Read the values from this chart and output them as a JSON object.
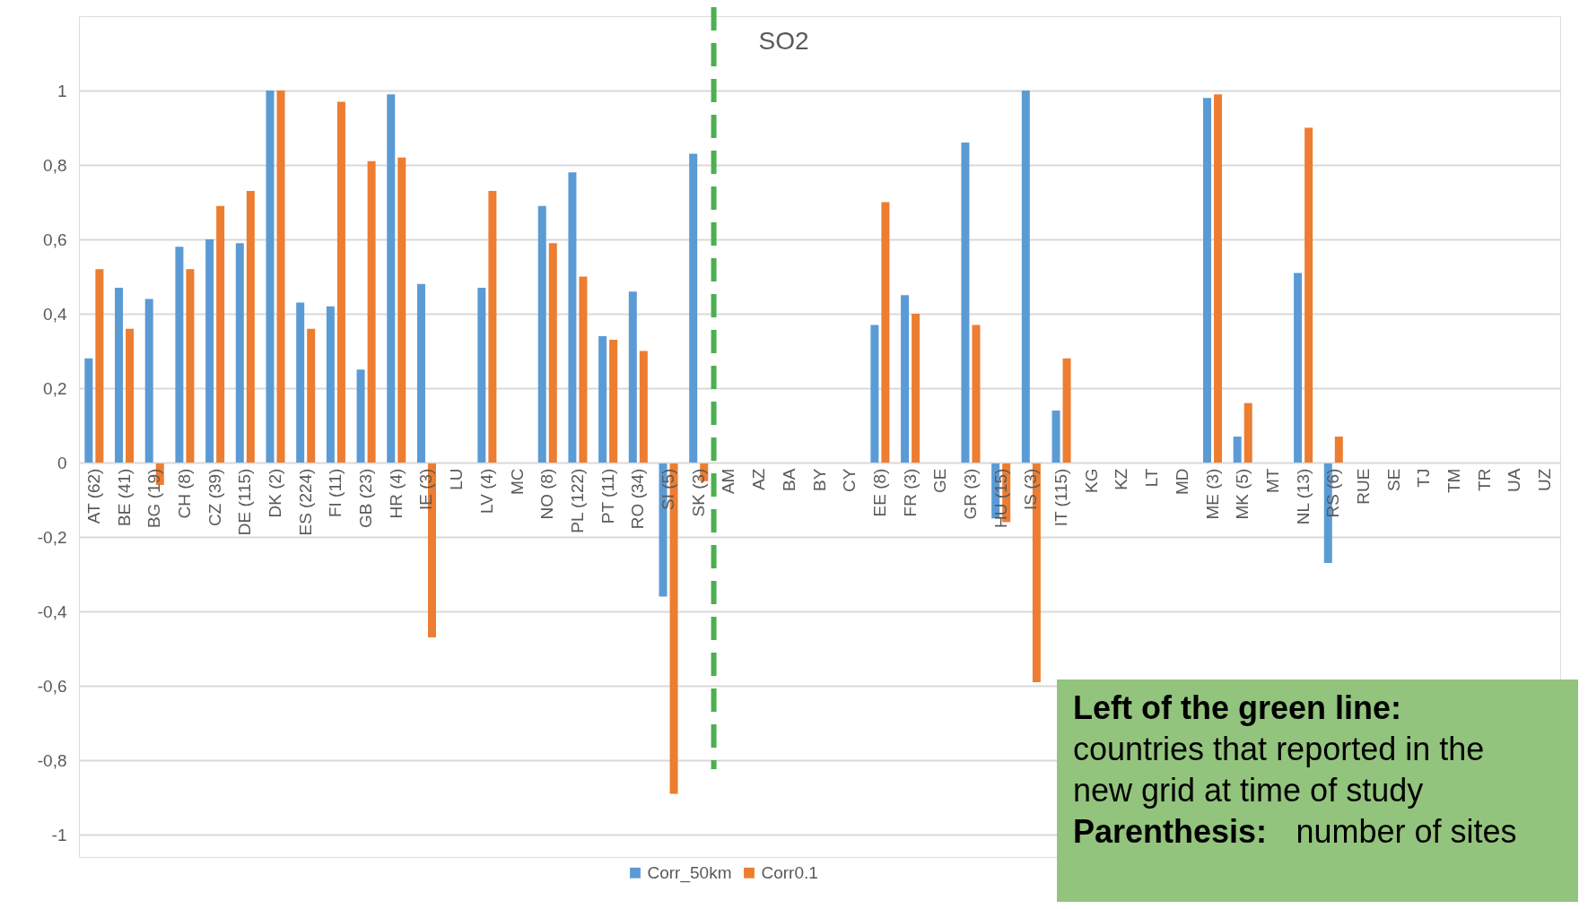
{
  "chart_data": {
    "type": "bar",
    "title": "SO2",
    "categories": [
      "AT (62)",
      "BE (41)",
      "BG (19)",
      "CH (8)",
      "CZ (39)",
      "DE (115)",
      "DK (2)",
      "ES (224)",
      "FI (11)",
      "GB (23)",
      "HR (4)",
      "IE (3)",
      "LU",
      "LV (4)",
      "MC",
      "NO (8)",
      "PL (122)",
      "PT (11)",
      "RO (34)",
      "SI (5)",
      "SK (3)",
      "AM",
      "AZ",
      "BA",
      "BY",
      "CY",
      "EE (8)",
      "FR (3)",
      "GE",
      "GR (3)",
      "HU (15)",
      "IS (3)",
      "IT (115)",
      "KG",
      "KZ",
      "LT",
      "MD",
      "ME (3)",
      "MK (5)",
      "MT",
      "NL (13)",
      "RS (6)",
      "RUE",
      "SE",
      "TJ",
      "TM",
      "TR",
      "UA",
      "UZ"
    ],
    "series": [
      {
        "name": "Corr_50km",
        "color": "#5b9bd5",
        "values": [
          0.28,
          0.47,
          0.44,
          0.58,
          0.6,
          0.59,
          1,
          0.43,
          0.42,
          0.25,
          0.99,
          0.48,
          null,
          0.47,
          null,
          0.69,
          0.78,
          0.34,
          0.46,
          -0.36,
          0.83,
          null,
          null,
          null,
          null,
          null,
          0.37,
          0.45,
          null,
          0.86,
          -0.15,
          1,
          0.14,
          null,
          null,
          null,
          null,
          0.98,
          0.07,
          null,
          0.51,
          -0.27,
          null,
          null,
          null,
          null,
          null,
          null,
          null
        ]
      },
      {
        "name": "Corr0.1",
        "color": "#ed7d31",
        "values": [
          0.52,
          0.36,
          -0.06,
          0.52,
          0.69,
          0.73,
          1,
          0.36,
          0.97,
          0.81,
          0.82,
          -0.47,
          null,
          0.73,
          null,
          0.59,
          0.5,
          0.33,
          0.3,
          -0.89,
          -0.05,
          null,
          null,
          null,
          null,
          null,
          0.7,
          0.4,
          null,
          0.37,
          -0.16,
          -0.59,
          0.28,
          null,
          null,
          null,
          null,
          0.99,
          0.16,
          null,
          0.9,
          0.07,
          null,
          null,
          null,
          null,
          null,
          null,
          null
        ]
      }
    ],
    "ylim": [
      -1.06,
      1.2
    ],
    "yticks": [
      {
        "value": -1,
        "label": "-1"
      },
      {
        "value": -0.8,
        "label": "-0,8"
      },
      {
        "value": -0.6,
        "label": "-0,6"
      },
      {
        "value": -0.4,
        "label": "-0,4"
      },
      {
        "value": -0.2,
        "label": "-0,2"
      },
      {
        "value": 0,
        "label": "0"
      },
      {
        "value": 0.2,
        "label": "0,2"
      },
      {
        "value": 0.4,
        "label": "0,4"
      },
      {
        "value": 0.6,
        "label": "0,6"
      },
      {
        "value": 0.8,
        "label": "0,8"
      },
      {
        "value": 1,
        "label": "1"
      }
    ],
    "grid": "y",
    "legend": "bottom",
    "ref_lines": [
      {
        "axis": "x",
        "value": "AM",
        "color": "#4caf50",
        "line_style": "dashed"
      }
    ],
    "annotations": [
      "Left of the green line: countries that reported in the new grid at time of study",
      "Parenthesis: number of sites"
    ]
  }
}
